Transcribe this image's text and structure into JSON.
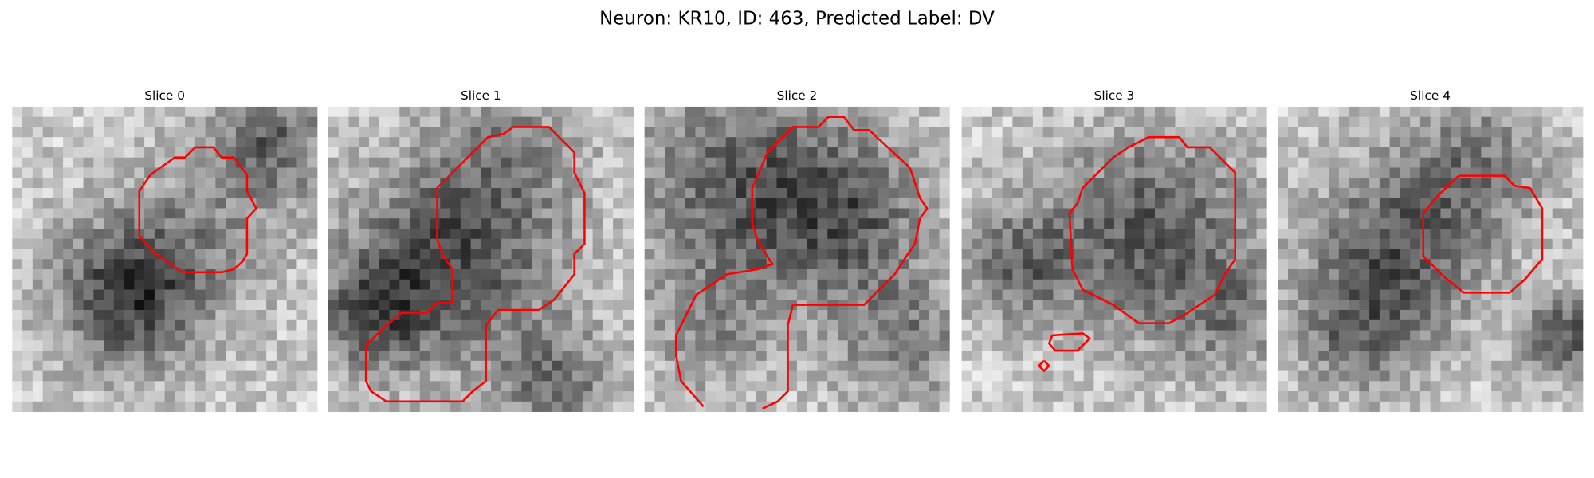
{
  "title": "Neuron: KR10, ID: 463, Predicted Label: DV",
  "panels": [
    {
      "title": "Slice 0"
    },
    {
      "title": "Slice 1"
    },
    {
      "title": "Slice 2"
    },
    {
      "title": "Slice 3"
    },
    {
      "title": "Slice 4"
    }
  ]
}
